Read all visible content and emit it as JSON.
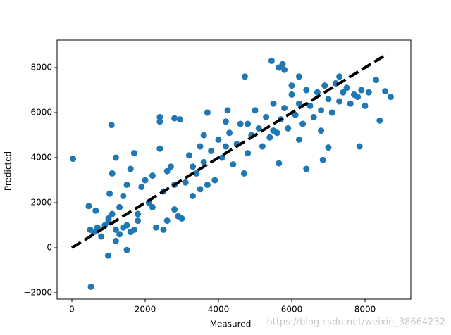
{
  "chart_data": {
    "type": "scatter",
    "x_label": "Measured",
    "y_label": "Predicted",
    "color": "#1f77b4",
    "x": [
      30,
      520,
      1080,
      5450,
      5650,
      5750,
      4720,
      3700,
      4250,
      2400,
      2400,
      2800,
      2950,
      1700,
      8400,
      7850,
      7000,
      6850,
      6400,
      5650,
      8700,
      8550,
      8300,
      990,
      1030,
      460,
      650,
      1000,
      500,
      600,
      700,
      800,
      900,
      1000,
      1100,
      1200,
      1300,
      1400,
      1500,
      1600,
      1700,
      1800,
      1300,
      1400,
      1500,
      1600,
      1100,
      1200,
      1900,
      2000,
      2100,
      2200,
      2300,
      2500,
      2600,
      2500,
      2600,
      2700,
      2800,
      2900,
      3000,
      3100,
      3200,
      3300,
      3400,
      3500,
      3600,
      3700,
      3800,
      3900,
      4000,
      4100,
      4200,
      4300,
      4400,
      4500,
      4600,
      4700,
      4800,
      4900,
      5000,
      5100,
      5200,
      5300,
      5400,
      5500,
      5600,
      5700,
      5800,
      5900,
      6000,
      6100,
      6200,
      6300,
      6400,
      6500,
      6600,
      6700,
      6800,
      6900,
      7000,
      7100,
      7200,
      7300,
      7400,
      7500,
      7600,
      7700,
      7800,
      7900,
      8000,
      8100,
      6200,
      6000,
      5800,
      3500,
      3300,
      2800,
      1800,
      2200,
      2400,
      4200,
      3600,
      4800,
      5500,
      6200,
      6800,
      7300,
      1500,
      1200
    ],
    "y": [
      3950,
      -1730,
      5450,
      8300,
      8000,
      8150,
      7600,
      6000,
      6100,
      5800,
      5600,
      5750,
      5700,
      4200,
      5650,
      4500,
      4450,
      3900,
      3500,
      3750,
      6700,
      6950,
      7450,
      -350,
      2400,
      1850,
      1650,
      1300,
      800,
      700,
      900,
      500,
      1000,
      1150,
      1500,
      800,
      600,
      900,
      1000,
      700,
      800,
      1200,
      1800,
      2300,
      2800,
      3500,
      3300,
      4000,
      2700,
      3000,
      2000,
      1800,
      900,
      800,
      1200,
      2500,
      3400,
      3600,
      2800,
      1400,
      1300,
      2900,
      4100,
      3600,
      3300,
      4500,
      3800,
      2800,
      4300,
      3000,
      4800,
      4000,
      5600,
      5100,
      3700,
      4600,
      5500,
      3300,
      4200,
      5000,
      6100,
      5300,
      4500,
      5800,
      4900,
      6400,
      5100,
      5700,
      6200,
      5300,
      6800,
      5900,
      6400,
      5500,
      7000,
      6300,
      5800,
      6900,
      6100,
      7200,
      6600,
      6000,
      7300,
      6500,
      6900,
      7100,
      6400,
      6800,
      6700,
      7000,
      6300,
      6900,
      7600,
      7200,
      7900,
      2600,
      2300,
      1700,
      1500,
      3200,
      4400,
      4500,
      5000,
      5500,
      5200,
      4800,
      5200,
      7600,
      -100,
      300
    ],
    "reference_line": {
      "x": [
        0,
        8600
      ],
      "y": [
        0,
        8600
      ],
      "color": "#000000",
      "dashed": true
    },
    "xlim": [
      -404,
      9250
    ],
    "ylim": [
      -2281,
      9219
    ],
    "xticks": [
      0,
      2000,
      4000,
      6000,
      8000
    ],
    "yticks": [
      {
        "value": -2000,
        "label": "−2000"
      },
      0,
      2000,
      4000,
      6000,
      8000
    ],
    "watermark": "https://blog.csdn.net/weixin_38664232"
  }
}
